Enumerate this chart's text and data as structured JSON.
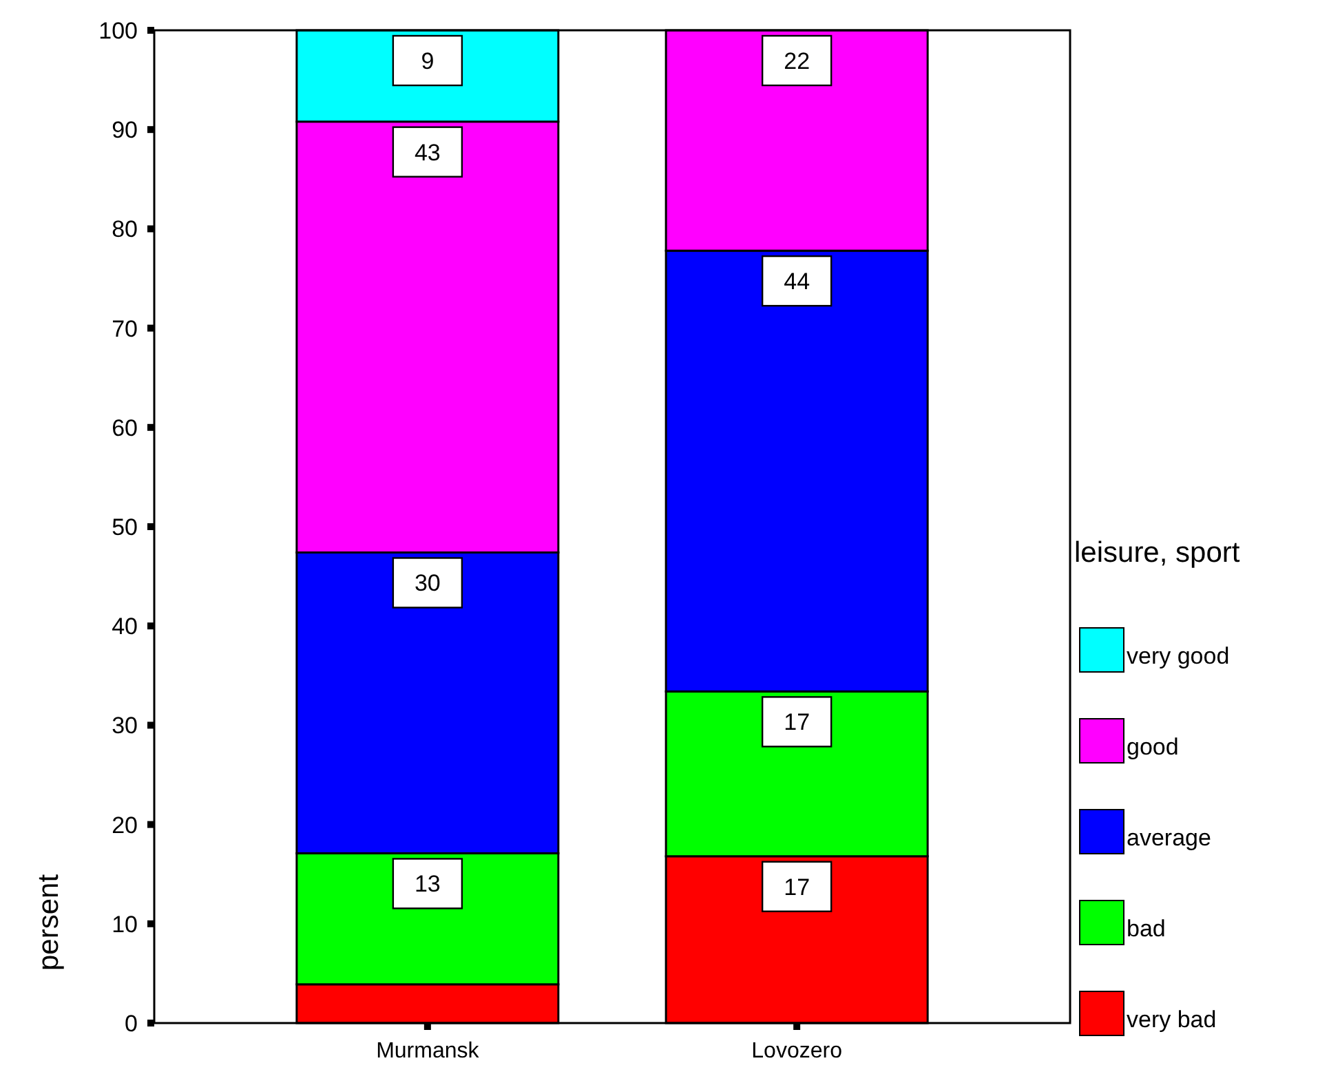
{
  "chart_data": {
    "type": "bar",
    "stacked": true,
    "ylabel": "persent",
    "legend_title": "leisure, sport",
    "legend": "right",
    "categories": [
      "Murmansk",
      "Lovozero"
    ],
    "series": [
      {
        "name": "very bad",
        "color": "#ff0000",
        "values": [
          3.9,
          16.8
        ],
        "value_labels": [
          null,
          "17"
        ]
      },
      {
        "name": "bad",
        "color": "#00ff00",
        "values": [
          13.2,
          16.6
        ],
        "value_labels": [
          "13",
          "17"
        ]
      },
      {
        "name": "average",
        "color": "#0000ff",
        "values": [
          30.3,
          44.4
        ],
        "value_labels": [
          "30",
          "44"
        ]
      },
      {
        "name": "good",
        "color": "#ff00ff",
        "values": [
          43.4,
          22.2
        ],
        "value_labels": [
          "43",
          "22"
        ]
      },
      {
        "name": "very good",
        "color": "#00ffff",
        "values": [
          9.2,
          null
        ],
        "value_labels": [
          "9",
          null
        ]
      }
    ],
    "ylim": [
      0,
      100
    ],
    "yticks": [
      0,
      10,
      20,
      30,
      40,
      50,
      60,
      70,
      80,
      90,
      100
    ],
    "grid": false
  }
}
